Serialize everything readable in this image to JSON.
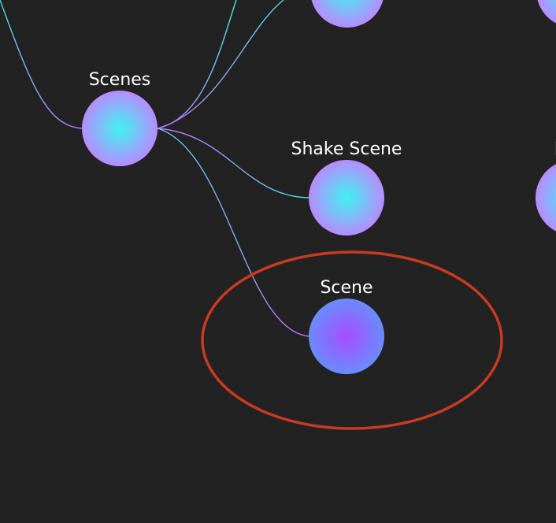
{
  "colors": {
    "background": "#222222",
    "node_center": "#3ff2f0",
    "node_edge": "#b78cff",
    "selected_center": "#a64dff",
    "selected_edge": "#6a8cff",
    "link_a": "#4ee0e8",
    "link_b": "#c66bff",
    "highlight_ring": "#c93a22"
  },
  "nodes": {
    "scenes": {
      "label": "Scenes"
    },
    "shake_scene": {
      "label": "Shake Scene"
    },
    "scene": {
      "label": "Scene",
      "selected": true
    },
    "partial_right": {
      "label": "N"
    }
  }
}
